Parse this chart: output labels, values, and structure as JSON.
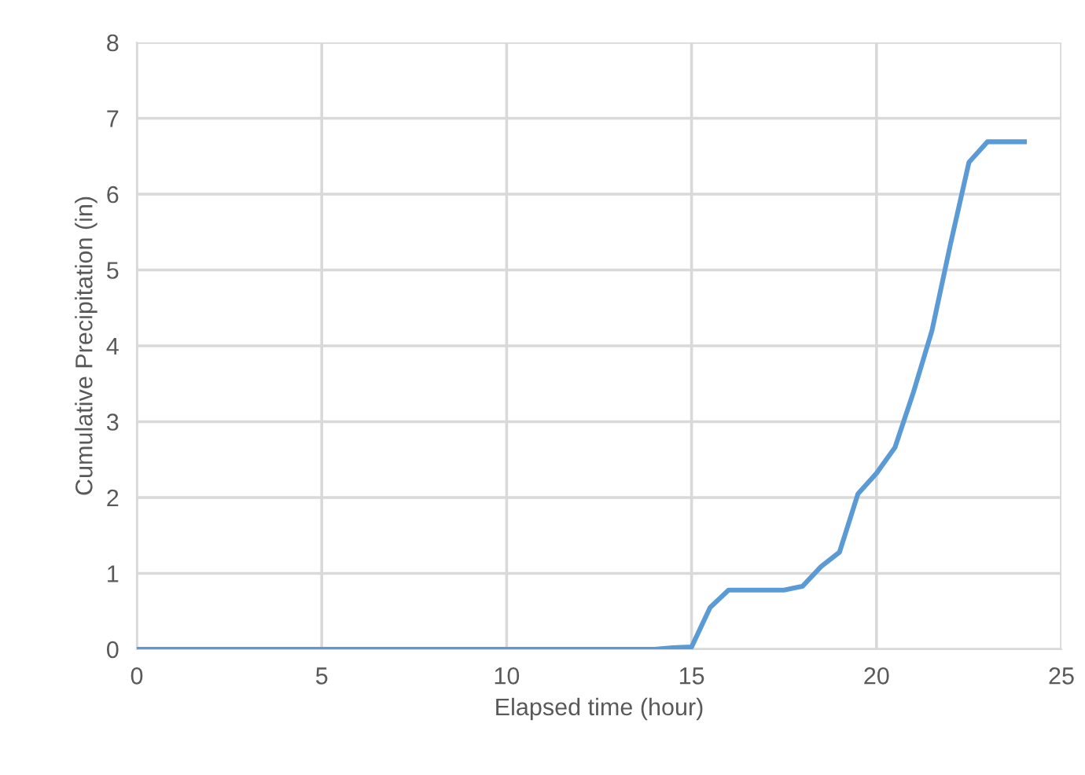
{
  "chart_data": {
    "type": "line",
    "xlabel": "Elapsed time (hour)",
    "ylabel": "Cumulative Precipitation (in)",
    "series": [
      {
        "color": "#5b9bd5",
        "x": [
          0,
          14,
          14.5,
          15,
          15.5,
          16,
          17.5,
          18,
          18.5,
          19,
          19.5,
          20,
          20.5,
          21,
          21.5,
          22,
          22.5,
          23,
          24
        ],
        "values": [
          0,
          0,
          0.02,
          0.03,
          0.55,
          0.78,
          0.78,
          0.83,
          1.09,
          1.28,
          2.05,
          2.32,
          2.66,
          3.39,
          4.2,
          5.34,
          6.42,
          6.69,
          6.69
        ]
      }
    ],
    "xlim": [
      0,
      25
    ],
    "xticks": [
      0,
      5,
      10,
      15,
      20,
      25
    ],
    "ylim": [
      0,
      8
    ],
    "yticks": [
      0,
      1,
      2,
      3,
      4,
      5,
      6,
      7,
      8
    ],
    "grid": true,
    "marker": "none",
    "line_style": "solid",
    "legend": false
  }
}
